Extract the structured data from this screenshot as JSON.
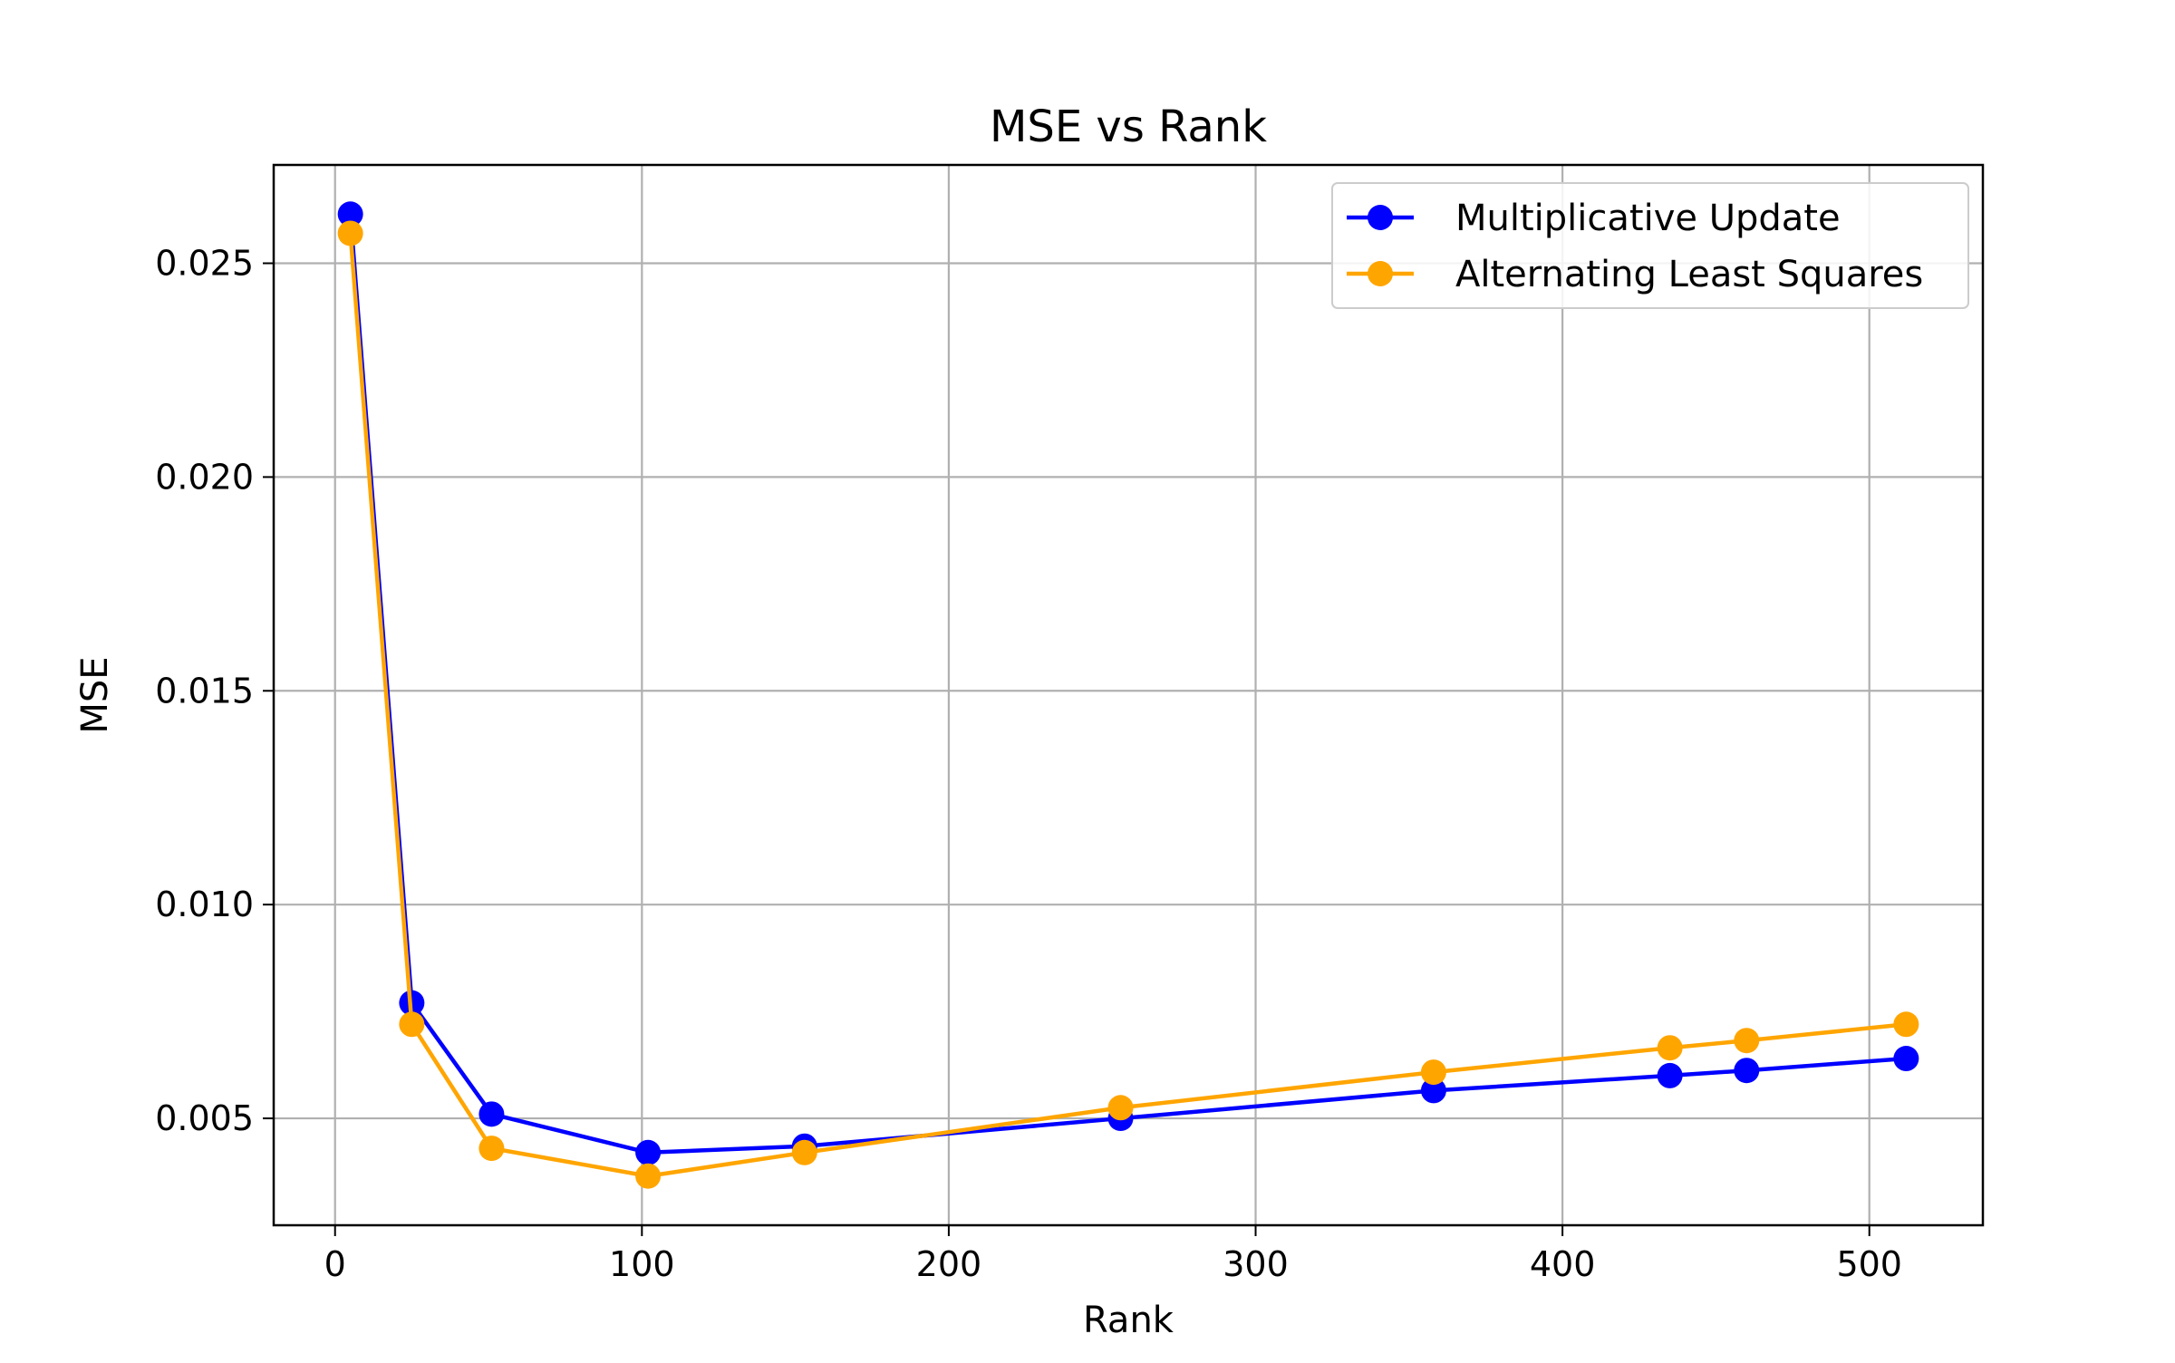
{
  "chart_data": {
    "type": "line",
    "title": "MSE vs Rank",
    "xlabel": "Rank",
    "ylabel": "MSE",
    "xlim": [
      -20,
      537
    ],
    "ylim": [
      0.0025,
      0.0273
    ],
    "xticks": [
      0,
      100,
      200,
      300,
      400,
      500
    ],
    "xtick_labels": [
      "0",
      "100",
      "200",
      "300",
      "400",
      "500"
    ],
    "yticks": [
      0.005,
      0.01,
      0.015,
      0.02,
      0.025
    ],
    "ytick_labels": [
      "0.005",
      "0.010",
      "0.015",
      "0.020",
      "0.025"
    ],
    "grid": true,
    "legend_position": "top-right",
    "series": [
      {
        "name": "Multiplicative Update",
        "color": "#0000ff",
        "x": [
          5,
          25,
          51,
          102,
          153,
          256,
          358,
          435,
          460,
          512
        ],
        "y": [
          0.02615,
          0.0077,
          0.0051,
          0.0042,
          0.00435,
          0.005,
          0.00565,
          0.006,
          0.00612,
          0.0064
        ]
      },
      {
        "name": "Alternating Least Squares",
        "color": "#ffa500",
        "x": [
          5,
          25,
          51,
          102,
          153,
          256,
          358,
          435,
          460,
          512
        ],
        "y": [
          0.0257,
          0.0072,
          0.0043,
          0.00365,
          0.0042,
          0.00525,
          0.00608,
          0.00665,
          0.00682,
          0.0072
        ]
      }
    ]
  }
}
